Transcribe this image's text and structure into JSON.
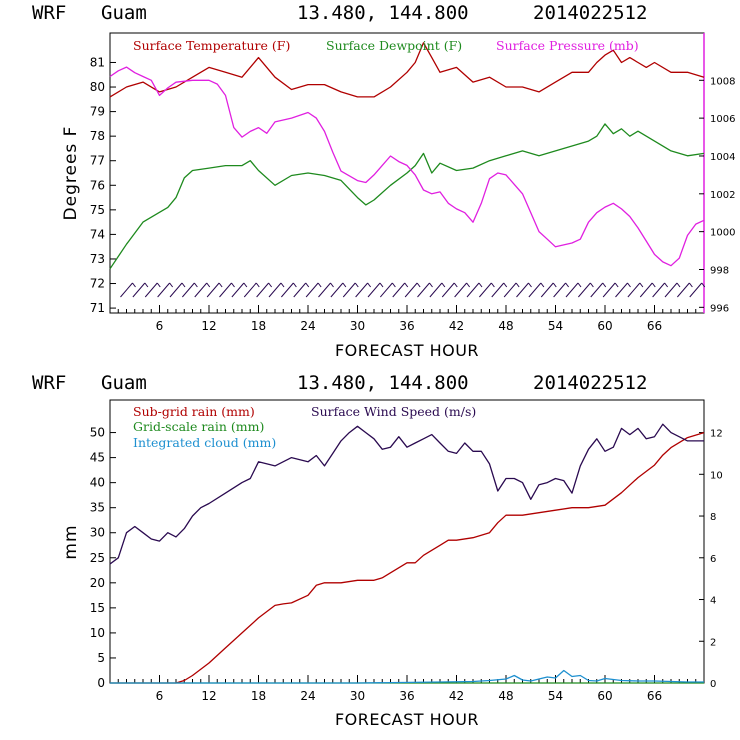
{
  "top": {
    "header": {
      "model": "WRF",
      "location": "Guam",
      "coords": "13.480, 144.800",
      "run": "2014022512"
    },
    "legend": [
      "Surface Temperature (F)",
      "Surface Dewpoint (F)",
      "Surface Pressure (mb)"
    ],
    "ylabel": "Degrees F",
    "xlabel": "FORECAST HOUR",
    "left_ticks": [
      "71",
      "72",
      "73",
      "74",
      "75",
      "76",
      "77",
      "78",
      "79",
      "80",
      "81"
    ],
    "right_ticks": [
      "996",
      "998",
      "1000",
      "1002",
      "1004",
      "1006",
      "1008"
    ],
    "x_ticks": [
      "6",
      "12",
      "18",
      "24",
      "30",
      "36",
      "42",
      "48",
      "54",
      "60",
      "66"
    ]
  },
  "bottom": {
    "header": {
      "model": "WRF",
      "location": "Guam",
      "coords": "13.480, 144.800",
      "run": "2014022512"
    },
    "legend": [
      "Sub-grid rain (mm)",
      "Surface Wind Speed (m/s)",
      "Grid-scale rain (mm)",
      "Integrated cloud (mm)"
    ],
    "ylabel": "mm",
    "xlabel": "FORECAST HOUR",
    "left_ticks": [
      "0",
      "5",
      "10",
      "15",
      "20",
      "25",
      "30",
      "35",
      "40",
      "45",
      "50"
    ],
    "right_ticks": [
      "0",
      "2",
      "4",
      "6",
      "8",
      "10",
      "12"
    ],
    "x_ticks": [
      "6",
      "12",
      "18",
      "24",
      "30",
      "36",
      "42",
      "48",
      "54",
      "60",
      "66"
    ]
  },
  "colors": {
    "temperature": "#b00000",
    "dewpoint": "#1e8a1e",
    "pressure": "#e020e0",
    "wind": "#2a0a50",
    "subgrid": "#b00000",
    "gridscale": "#1e8a1e",
    "cloud": "#1e90d0",
    "barbs": "#2a0a50",
    "frame": "#000000"
  },
  "chart_data": [
    {
      "type": "line",
      "title": "WRF Guam 13.480, 144.800 2014022512",
      "xlabel": "FORECAST HOUR",
      "ylabel": "Degrees F",
      "xlim": [
        0,
        72
      ],
      "ylim": [
        70.8,
        82.2
      ],
      "y2lim": [
        995.7,
        1010.5
      ],
      "series": [
        {
          "name": "Surface Temperature (F)",
          "axis": "left",
          "color": "#b00000",
          "x": [
            0,
            2,
            4,
            6,
            8,
            10,
            12,
            14,
            16,
            18,
            20,
            22,
            24,
            26,
            28,
            30,
            32,
            34,
            36,
            37,
            38,
            39,
            40,
            42,
            44,
            46,
            48,
            50,
            52,
            54,
            56,
            58,
            59,
            60,
            61,
            62,
            63,
            64,
            65,
            66,
            68,
            70,
            72
          ],
          "y": [
            79.6,
            80.0,
            80.2,
            79.8,
            80.0,
            80.4,
            80.8,
            80.6,
            80.4,
            81.2,
            80.4,
            79.9,
            80.1,
            80.1,
            79.8,
            79.6,
            79.6,
            80.0,
            80.6,
            81.0,
            81.8,
            81.2,
            80.6,
            80.8,
            80.2,
            80.4,
            80.0,
            80.0,
            79.8,
            80.2,
            80.6,
            80.6,
            81.0,
            81.3,
            81.5,
            81.0,
            81.2,
            81.0,
            80.8,
            81.0,
            80.6,
            80.6,
            80.4
          ]
        },
        {
          "name": "Surface Dewpoint (F)",
          "axis": "left",
          "color": "#1e8a1e",
          "x": [
            0,
            2,
            4,
            6,
            7,
            8,
            9,
            10,
            12,
            14,
            16,
            17,
            18,
            20,
            22,
            24,
            26,
            28,
            30,
            31,
            32,
            34,
            36,
            37,
            38,
            39,
            40,
            42,
            44,
            46,
            48,
            50,
            52,
            54,
            56,
            58,
            59,
            60,
            61,
            62,
            63,
            64,
            66,
            68,
            70,
            72
          ],
          "y": [
            72.6,
            73.6,
            74.5,
            74.9,
            75.1,
            75.5,
            76.3,
            76.6,
            76.7,
            76.8,
            76.8,
            77.0,
            76.6,
            76.0,
            76.4,
            76.5,
            76.4,
            76.2,
            75.5,
            75.2,
            75.4,
            76.0,
            76.5,
            76.8,
            77.3,
            76.5,
            76.9,
            76.6,
            76.7,
            77.0,
            77.2,
            77.4,
            77.2,
            77.4,
            77.6,
            77.8,
            78.0,
            78.5,
            78.1,
            78.3,
            78.0,
            78.2,
            77.8,
            77.4,
            77.2,
            77.3
          ]
        },
        {
          "name": "Surface Pressure (mb)",
          "axis": "right",
          "color": "#e020e0",
          "x": [
            0,
            1,
            2,
            3,
            4,
            5,
            6,
            7,
            8,
            10,
            12,
            13,
            14,
            15,
            16,
            17,
            18,
            19,
            20,
            22,
            24,
            25,
            26,
            27,
            28,
            30,
            31,
            32,
            34,
            35,
            36,
            37,
            38,
            39,
            40,
            41,
            42,
            43,
            44,
            45,
            46,
            47,
            48,
            49,
            50,
            51,
            52,
            53,
            54,
            56,
            57,
            58,
            59,
            60,
            61,
            62,
            63,
            64,
            65,
            66,
            67,
            68,
            69,
            70,
            71,
            72
          ],
          "y": [
            1008.2,
            1008.5,
            1008.7,
            1008.4,
            1008.2,
            1008.0,
            1007.2,
            1007.6,
            1007.9,
            1008.0,
            1008.0,
            1007.8,
            1007.2,
            1005.5,
            1005.0,
            1005.3,
            1005.5,
            1005.2,
            1005.8,
            1006.0,
            1006.3,
            1006.0,
            1005.3,
            1004.2,
            1003.2,
            1002.7,
            1002.6,
            1003.0,
            1004.0,
            1003.7,
            1003.5,
            1003.0,
            1002.2,
            1002.0,
            1002.1,
            1001.5,
            1001.2,
            1001.0,
            1000.5,
            1001.5,
            1002.8,
            1003.1,
            1003.0,
            1002.5,
            1002.0,
            1001.0,
            1000.0,
            999.6,
            999.2,
            999.4,
            999.6,
            1000.5,
            1001.0,
            1001.3,
            1001.5,
            1001.2,
            1000.8,
            1000.2,
            999.5,
            998.8,
            998.4,
            998.2,
            998.6,
            999.8,
            1000.4,
            1000.6
          ]
        }
      ],
      "annotations": [
        "wind barbs along bottom, hours 2-72 every 1.5 h"
      ]
    },
    {
      "type": "line",
      "title": "WRF Guam 13.480, 144.800 2014022512",
      "xlabel": "FORECAST HOUR",
      "ylabel": "mm",
      "xlim": [
        0,
        72
      ],
      "ylim": [
        0,
        56.5
      ],
      "y2lim": [
        0,
        13.56
      ],
      "series": [
        {
          "name": "Sub-grid rain (mm)",
          "axis": "left",
          "color": "#b00000",
          "x": [
            0,
            7,
            8,
            9,
            10,
            12,
            14,
            16,
            18,
            20,
            21,
            22,
            24,
            25,
            26,
            28,
            30,
            32,
            33,
            34,
            36,
            37,
            38,
            40,
            41,
            42,
            44,
            46,
            47,
            48,
            50,
            52,
            54,
            56,
            58,
            60,
            62,
            64,
            66,
            67,
            68,
            70,
            72
          ],
          "y": [
            0,
            0,
            0,
            0.5,
            1.5,
            4,
            7,
            10,
            13,
            15.5,
            15.8,
            16,
            17.5,
            19.5,
            20,
            20,
            20.5,
            20.5,
            21,
            22,
            24,
            24,
            25.5,
            27.5,
            28.5,
            28.5,
            29,
            30,
            32,
            33.5,
            33.5,
            34,
            34.5,
            35,
            35,
            35.5,
            38,
            41,
            43.5,
            45.5,
            47,
            49,
            50
          ]
        },
        {
          "name": "Surface Wind Speed (m/s)",
          "axis": "right",
          "color": "#2a0a50",
          "x": [
            0,
            1,
            2,
            3,
            4,
            5,
            6,
            7,
            8,
            9,
            10,
            11,
            12,
            14,
            16,
            17,
            18,
            20,
            22,
            24,
            25,
            26,
            27,
            28,
            29,
            30,
            31,
            32,
            33,
            34,
            35,
            36,
            37,
            38,
            39,
            40,
            41,
            42,
            43,
            44,
            45,
            46,
            47,
            48,
            49,
            50,
            51,
            52,
            53,
            54,
            55,
            56,
            57,
            58,
            59,
            60,
            61,
            62,
            63,
            64,
            65,
            66,
            67,
            68,
            70,
            72
          ],
          "y": [
            5.7,
            6.0,
            7.2,
            7.5,
            7.2,
            6.9,
            6.8,
            7.2,
            7.0,
            7.4,
            8.0,
            8.4,
            8.6,
            9.1,
            9.6,
            9.8,
            10.6,
            10.4,
            10.8,
            10.6,
            10.9,
            10.4,
            11.0,
            11.6,
            12.0,
            12.3,
            12.0,
            11.7,
            11.2,
            11.3,
            11.8,
            11.3,
            11.5,
            11.7,
            11.9,
            11.5,
            11.1,
            11.0,
            11.5,
            11.1,
            11.1,
            10.5,
            9.2,
            9.8,
            9.8,
            9.6,
            8.8,
            9.5,
            9.6,
            9.8,
            9.7,
            9.1,
            10.4,
            11.2,
            11.7,
            11.1,
            11.3,
            12.2,
            11.9,
            12.2,
            11.7,
            11.8,
            12.4,
            12.0,
            11.6,
            11.6
          ]
        },
        {
          "name": "Grid-scale rain (mm)",
          "axis": "left",
          "color": "#1e8a1e",
          "x": [
            0,
            72
          ],
          "y": [
            0,
            0
          ]
        },
        {
          "name": "Integrated cloud (mm)",
          "axis": "left",
          "color": "#1e90d0",
          "x": [
            0,
            10,
            20,
            30,
            40,
            44,
            46,
            48,
            49,
            50,
            51,
            52,
            53,
            54,
            55,
            56,
            57,
            58,
            59,
            60,
            62,
            64,
            66,
            68,
            70,
            72
          ],
          "y": [
            0,
            0,
            0,
            0,
            0.2,
            0.3,
            0.5,
            0.8,
            1.5,
            0.6,
            0.4,
            0.8,
            1.2,
            1.0,
            2.5,
            1.3,
            1.5,
            0.5,
            0.4,
            0.9,
            0.5,
            0.4,
            0.4,
            0.3,
            0.2,
            0.2
          ]
        }
      ]
    }
  ]
}
